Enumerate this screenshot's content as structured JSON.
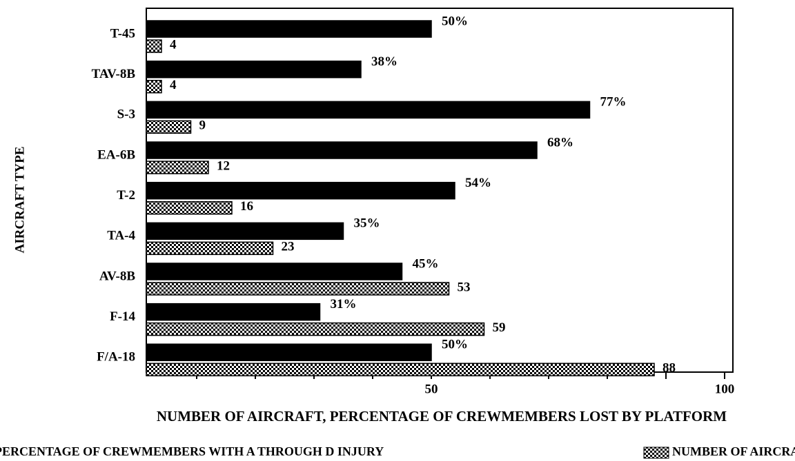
{
  "chart_data": {
    "type": "hbar",
    "title": "NUMBER OF AIRCRAFT, PERCENTAGE OF CREWMEMBERS LOST BY PLATFORM",
    "ylabel": "AIRCRAFT TYPE",
    "categories": [
      "T-45",
      "TAV-8B",
      "S-3",
      "EA-6B",
      "T-2",
      "TA-4",
      "AV-8B",
      "F-14",
      "F/A-18"
    ],
    "series": [
      {
        "name": "PERCENTAGE OF CREWMEMBERS WITH A THROUGH D INJURY",
        "color": "#000000",
        "pattern": "solid",
        "values": [
          50,
          38,
          77,
          68,
          54,
          35,
          45,
          31,
          50
        ],
        "value_labels": [
          "50%",
          "38%",
          "77%",
          "68%",
          "54%",
          "35%",
          "45%",
          "31%",
          "50%"
        ]
      },
      {
        "name": "NUMBER OF AIRCRAFT LOST",
        "color": "#000000",
        "pattern": "checker",
        "values": [
          4,
          4,
          9,
          12,
          16,
          23,
          53,
          59,
          88
        ]
      }
    ],
    "xlim": [
      0,
      100
    ],
    "xticks": [
      50,
      100
    ],
    "xminorticks": [
      10,
      20,
      30,
      40,
      60,
      70,
      80,
      90
    ],
    "legend": "bottom"
  }
}
